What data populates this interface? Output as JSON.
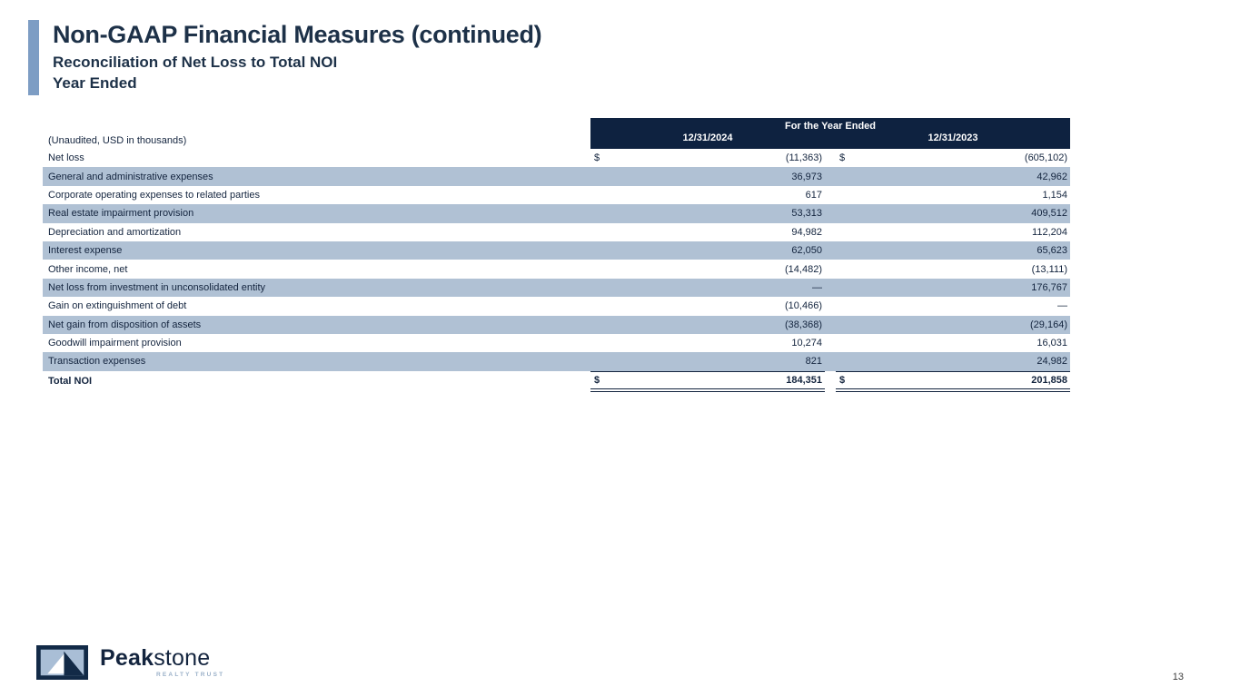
{
  "slide": {
    "title": "Non-GAAP Financial Measures (continued)",
    "subtitle": "Reconciliation of Net Loss to Total NOI",
    "subtitle2": "Year Ended",
    "page_number": "13"
  },
  "table": {
    "note": "(Unaudited, USD in thousands)",
    "header": {
      "group_label": "For the Year Ended",
      "columns": [
        "12/31/2024",
        "12/31/2023"
      ]
    },
    "currency_symbol": "$",
    "rows": [
      {
        "label": "Net loss",
        "dollar": true,
        "shaded": false,
        "values": [
          "(11,363)",
          "(605,102)"
        ]
      },
      {
        "label": "General and administrative expenses",
        "dollar": false,
        "shaded": true,
        "values": [
          "36,973",
          "42,962"
        ]
      },
      {
        "label": "Corporate operating expenses to related parties",
        "dollar": false,
        "shaded": false,
        "values": [
          "617",
          "1,154"
        ]
      },
      {
        "label": "Real estate impairment provision",
        "dollar": false,
        "shaded": true,
        "values": [
          "53,313",
          "409,512"
        ]
      },
      {
        "label": "Depreciation and amortization",
        "dollar": false,
        "shaded": false,
        "values": [
          "94,982",
          "112,204"
        ]
      },
      {
        "label": "Interest expense",
        "dollar": false,
        "shaded": true,
        "values": [
          "62,050",
          "65,623"
        ]
      },
      {
        "label": "Other income, net",
        "dollar": false,
        "shaded": false,
        "values": [
          "(14,482)",
          "(13,111)"
        ]
      },
      {
        "label": "Net loss from investment in unconsolidated entity",
        "dollar": false,
        "shaded": true,
        "values": [
          "—",
          "176,767"
        ]
      },
      {
        "label": "Gain on extinguishment of debt",
        "dollar": false,
        "shaded": false,
        "values": [
          "(10,466)",
          "—"
        ]
      },
      {
        "label": "Net gain from disposition of assets",
        "dollar": false,
        "shaded": true,
        "values": [
          "(38,368)",
          "(29,164)"
        ]
      },
      {
        "label": "Goodwill impairment provision",
        "dollar": false,
        "shaded": false,
        "values": [
          "10,274",
          "16,031"
        ]
      },
      {
        "label": "Transaction expenses",
        "dollar": false,
        "shaded": true,
        "values": [
          "821",
          "24,982"
        ]
      }
    ],
    "total": {
      "label": "Total NOI",
      "values": [
        "184,351",
        "201,858"
      ]
    }
  },
  "footer": {
    "logo_name_bold": "Peak",
    "logo_name_regular": "stone",
    "logo_subtext": "REALTY TRUST"
  },
  "colors": {
    "header_bg": "#0e2240",
    "shaded_row": "#b0c1d4",
    "accent_bar": "#7d9dc4",
    "title_text": "#1d3148",
    "body_text": "#13243e",
    "logo_subtext": "#9ab0c8"
  }
}
